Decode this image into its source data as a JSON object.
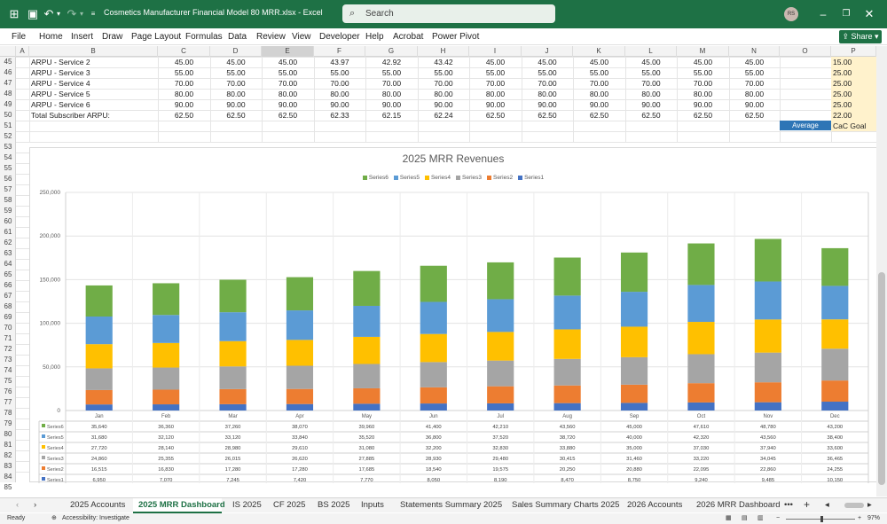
{
  "titlebar": {
    "title": "Cosmetics Manufacturer Financial Model 80 MRR.xlsx  -  Excel",
    "search_placeholder": "Search",
    "user_initials": "RS"
  },
  "menu": [
    "File",
    "Home",
    "Insert",
    "Draw",
    "Page Layout",
    "Formulas",
    "Data",
    "Review",
    "View",
    "Developer",
    "Help",
    "Acrobat",
    "Power Pivot"
  ],
  "share_label": "Share",
  "columns": [
    "A",
    "B",
    "C",
    "D",
    "E",
    "F",
    "G",
    "H",
    "I",
    "J",
    "K",
    "L",
    "M",
    "N",
    "O",
    "P"
  ],
  "rows": [
    "45",
    "46",
    "47",
    "48",
    "49",
    "50",
    "51",
    "52",
    "53",
    "54",
    "55",
    "56",
    "57",
    "58",
    "59",
    "60",
    "61",
    "62",
    "63",
    "64",
    "65",
    "66",
    "67",
    "68",
    "69",
    "70",
    "71",
    "72",
    "73",
    "74",
    "75",
    "76",
    "77",
    "78",
    "79",
    "80",
    "81",
    "82",
    "83",
    "84",
    "85"
  ],
  "table": [
    {
      "label": "ARPU - Service 2",
      "values": [
        "45.00",
        "45.00",
        "45.00",
        "43.97",
        "42.92",
        "43.42",
        "45.00",
        "45.00",
        "45.00",
        "45.00",
        "45.00",
        "45.00"
      ],
      "p": "15.00"
    },
    {
      "label": "ARPU - Service 3",
      "values": [
        "55.00",
        "55.00",
        "55.00",
        "55.00",
        "55.00",
        "55.00",
        "55.00",
        "55.00",
        "55.00",
        "55.00",
        "55.00",
        "55.00"
      ],
      "p": "25.00"
    },
    {
      "label": "ARPU - Service 4",
      "values": [
        "70.00",
        "70.00",
        "70.00",
        "70.00",
        "70.00",
        "70.00",
        "70.00",
        "70.00",
        "70.00",
        "70.00",
        "70.00",
        "70.00"
      ],
      "p": "25.00"
    },
    {
      "label": "ARPU - Service 5",
      "values": [
        "80.00",
        "80.00",
        "80.00",
        "80.00",
        "80.00",
        "80.00",
        "80.00",
        "80.00",
        "80.00",
        "80.00",
        "80.00",
        "80.00"
      ],
      "p": "25.00"
    },
    {
      "label": "ARPU - Service 6",
      "values": [
        "90.00",
        "90.00",
        "90.00",
        "90.00",
        "90.00",
        "90.00",
        "90.00",
        "90.00",
        "90.00",
        "90.00",
        "90.00",
        "90.00"
      ],
      "p": "25.00"
    },
    {
      "label": "Total Subscriber ARPU:",
      "values": [
        "62.50",
        "62.50",
        "62.50",
        "62.33",
        "62.15",
        "62.24",
        "62.50",
        "62.50",
        "62.50",
        "62.50",
        "62.50",
        "62.50"
      ],
      "p": "22.00"
    }
  ],
  "average_label": "Average",
  "cac_goal_label": "CaC Goal",
  "chart_data": {
    "type": "bar",
    "stacked": true,
    "title": "2025 MRR Revenues",
    "categories": [
      "Jan",
      "Feb",
      "Mar",
      "Apr",
      "May",
      "Jun",
      "Jul",
      "Aug",
      "Sep",
      "Oct",
      "Nov",
      "Dec"
    ],
    "ylim": [
      0,
      250000
    ],
    "yticks": [
      "0",
      "50,000",
      "100,000",
      "150,000",
      "200,000",
      "250,000"
    ],
    "legend_position": "top",
    "series": [
      {
        "name": "Series1",
        "color": "#4472c4",
        "values": [
          6950,
          7070,
          7245,
          7420,
          7770,
          8050,
          8190,
          8470,
          8750,
          9240,
          9485,
          10150
        ],
        "labels": [
          "6,950",
          "7,070",
          "7,245",
          "7,420",
          "7,770",
          "8,050",
          "8,190",
          "8,470",
          "8,750",
          "9,240",
          "9,485",
          "10,150"
        ]
      },
      {
        "name": "Series2",
        "color": "#ed7d31",
        "values": [
          16515,
          16830,
          17280,
          17280,
          17685,
          18540,
          19575,
          20250,
          20880,
          22095,
          22860,
          24255
        ],
        "labels": [
          "16,515",
          "16,830",
          "17,280",
          "17,280",
          "17,685",
          "18,540",
          "19,575",
          "20,250",
          "20,880",
          "22,095",
          "22,860",
          "24,255"
        ]
      },
      {
        "name": "Series3",
        "color": "#a5a5a5",
        "values": [
          24860,
          25355,
          26015,
          26620,
          27885,
          28930,
          29480,
          30415,
          31460,
          33220,
          34045,
          36465
        ],
        "labels": [
          "24,860",
          "25,355",
          "26,015",
          "26,620",
          "27,885",
          "28,930",
          "29,480",
          "30,415",
          "31,460",
          "33,220",
          "34,045",
          "36,465"
        ]
      },
      {
        "name": "Series4",
        "color": "#ffc000",
        "values": [
          27720,
          28140,
          28980,
          29610,
          31080,
          32200,
          32830,
          33880,
          35000,
          37030,
          37940,
          33600
        ],
        "labels": [
          "27,720",
          "28,140",
          "28,980",
          "29,610",
          "31,080",
          "32,200",
          "32,830",
          "33,880",
          "35,000",
          "37,030",
          "37,940",
          "33,600"
        ]
      },
      {
        "name": "Series5",
        "color": "#5b9bd5",
        "values": [
          31680,
          32120,
          33120,
          33840,
          35520,
          36800,
          37520,
          38720,
          40000,
          42320,
          43560,
          38400
        ],
        "labels": [
          "31,680",
          "32,120",
          "33,120",
          "33,840",
          "35,520",
          "36,800",
          "37,520",
          "38,720",
          "40,000",
          "42,320",
          "43,560",
          "38,400"
        ]
      },
      {
        "name": "Series6",
        "color": "#70ad47",
        "values": [
          35640,
          36360,
          37260,
          38070,
          39960,
          41400,
          42210,
          43560,
          45000,
          47610,
          48780,
          43200
        ],
        "labels": [
          "35,640",
          "36,360",
          "37,260",
          "38,070",
          "39,960",
          "41,400",
          "42,210",
          "43,560",
          "45,000",
          "47,610",
          "48,780",
          "43,200"
        ]
      }
    ]
  },
  "sheet_tabs": [
    "2025 Accounts",
    "2025 MRR Dashboard",
    "IS 2025",
    "CF 2025",
    "BS 2025",
    "Inputs",
    "Statements Summary 2025",
    "Sales Summary Charts 2025",
    "2026 Accounts",
    "2026 MRR Dashboard"
  ],
  "active_tab": "2025 MRR Dashboard",
  "status": {
    "ready": "Ready",
    "accessibility": "Accessibility: Investigate",
    "zoom": "97%"
  }
}
